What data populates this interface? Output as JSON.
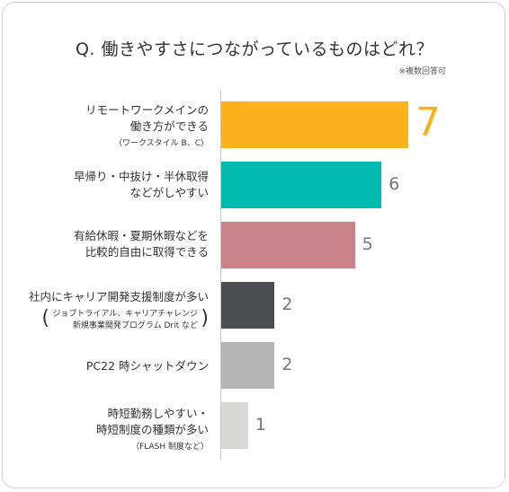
{
  "title": "Q. 働きやすさにつながっているものはどれ？",
  "note": "※複数回答可",
  "chart_data": {
    "type": "bar",
    "orientation": "horizontal",
    "title": "Q. 働きやすさにつながっているものはどれ？",
    "note": "※複数回答可",
    "categories": [
      {
        "main": [
          "リモートワークメインの",
          "働き方ができる"
        ],
        "sub": [
          "（ワークスタイル B、C）"
        ],
        "paren": false
      },
      {
        "main": [
          "早帰り・中抜け・半休取得",
          "などがしやすい"
        ],
        "sub": [],
        "paren": false
      },
      {
        "main": [
          "有給休暇・夏期休暇などを",
          "比較的自由に取得できる"
        ],
        "sub": [],
        "paren": false
      },
      {
        "main": [
          "社内にキャリア開発支援制度が多い"
        ],
        "sub": [
          "ジョブトライアル、キャリアチャレンジ",
          "新規事業開発プログラム Drit など"
        ],
        "paren": true
      },
      {
        "main": [
          "PC22 時シャットダウン"
        ],
        "sub": [],
        "paren": false
      },
      {
        "main": [
          "時短勤務しやすい・",
          "時短制度の種類が多い"
        ],
        "sub": [
          "（FLASH 制度など）"
        ],
        "paren": false
      }
    ],
    "values": [
      7,
      6,
      5,
      2,
      2,
      1
    ],
    "colors": [
      "#fbb21d",
      "#00b9af",
      "#c8838a",
      "#4d4e52",
      "#b5b5b5",
      "#d8d8d6"
    ],
    "highlight_index": 0,
    "highlight_color": "#f5b120",
    "xlim": [
      0,
      7
    ]
  }
}
